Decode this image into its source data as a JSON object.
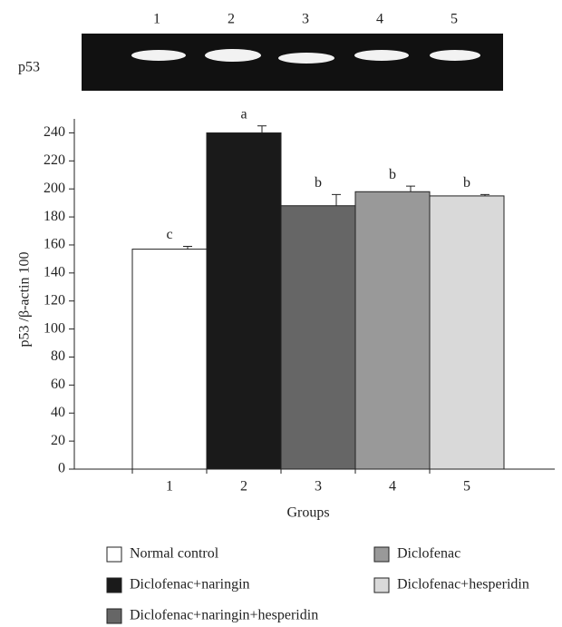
{
  "gel": {
    "label": "p53",
    "lanes": [
      "1",
      "2",
      "3",
      "4",
      "5"
    ]
  },
  "chart_data": {
    "type": "bar",
    "categories": [
      "1",
      "2",
      "3",
      "4",
      "5"
    ],
    "values": [
      157,
      240,
      188,
      198,
      195
    ],
    "errors": [
      2,
      5,
      8,
      4,
      1
    ],
    "annotations": [
      "c",
      "a",
      "b",
      "b",
      "b"
    ],
    "colors": [
      "#ffffff",
      "#1a1a1a",
      "#666666",
      "#999999",
      "#d9d9d9"
    ],
    "x_label": "Groups",
    "y_label": "p53 /β-actin 100",
    "ylim": [
      0,
      250
    ],
    "yticks": [
      0,
      20,
      40,
      60,
      80,
      100,
      120,
      140,
      160,
      180,
      200,
      220,
      240
    ],
    "legend": [
      {
        "name": "Normal control",
        "color": "#ffffff"
      },
      {
        "name": "Diclofenac",
        "color": "#999999"
      },
      {
        "name": "Diclofenac+naringin",
        "color": "#1a1a1a"
      },
      {
        "name": "Diclofenac+hesperidin",
        "color": "#d9d9d9"
      },
      {
        "name": "Diclofenac+naringin+hesperidin",
        "color": "#666666"
      }
    ]
  }
}
